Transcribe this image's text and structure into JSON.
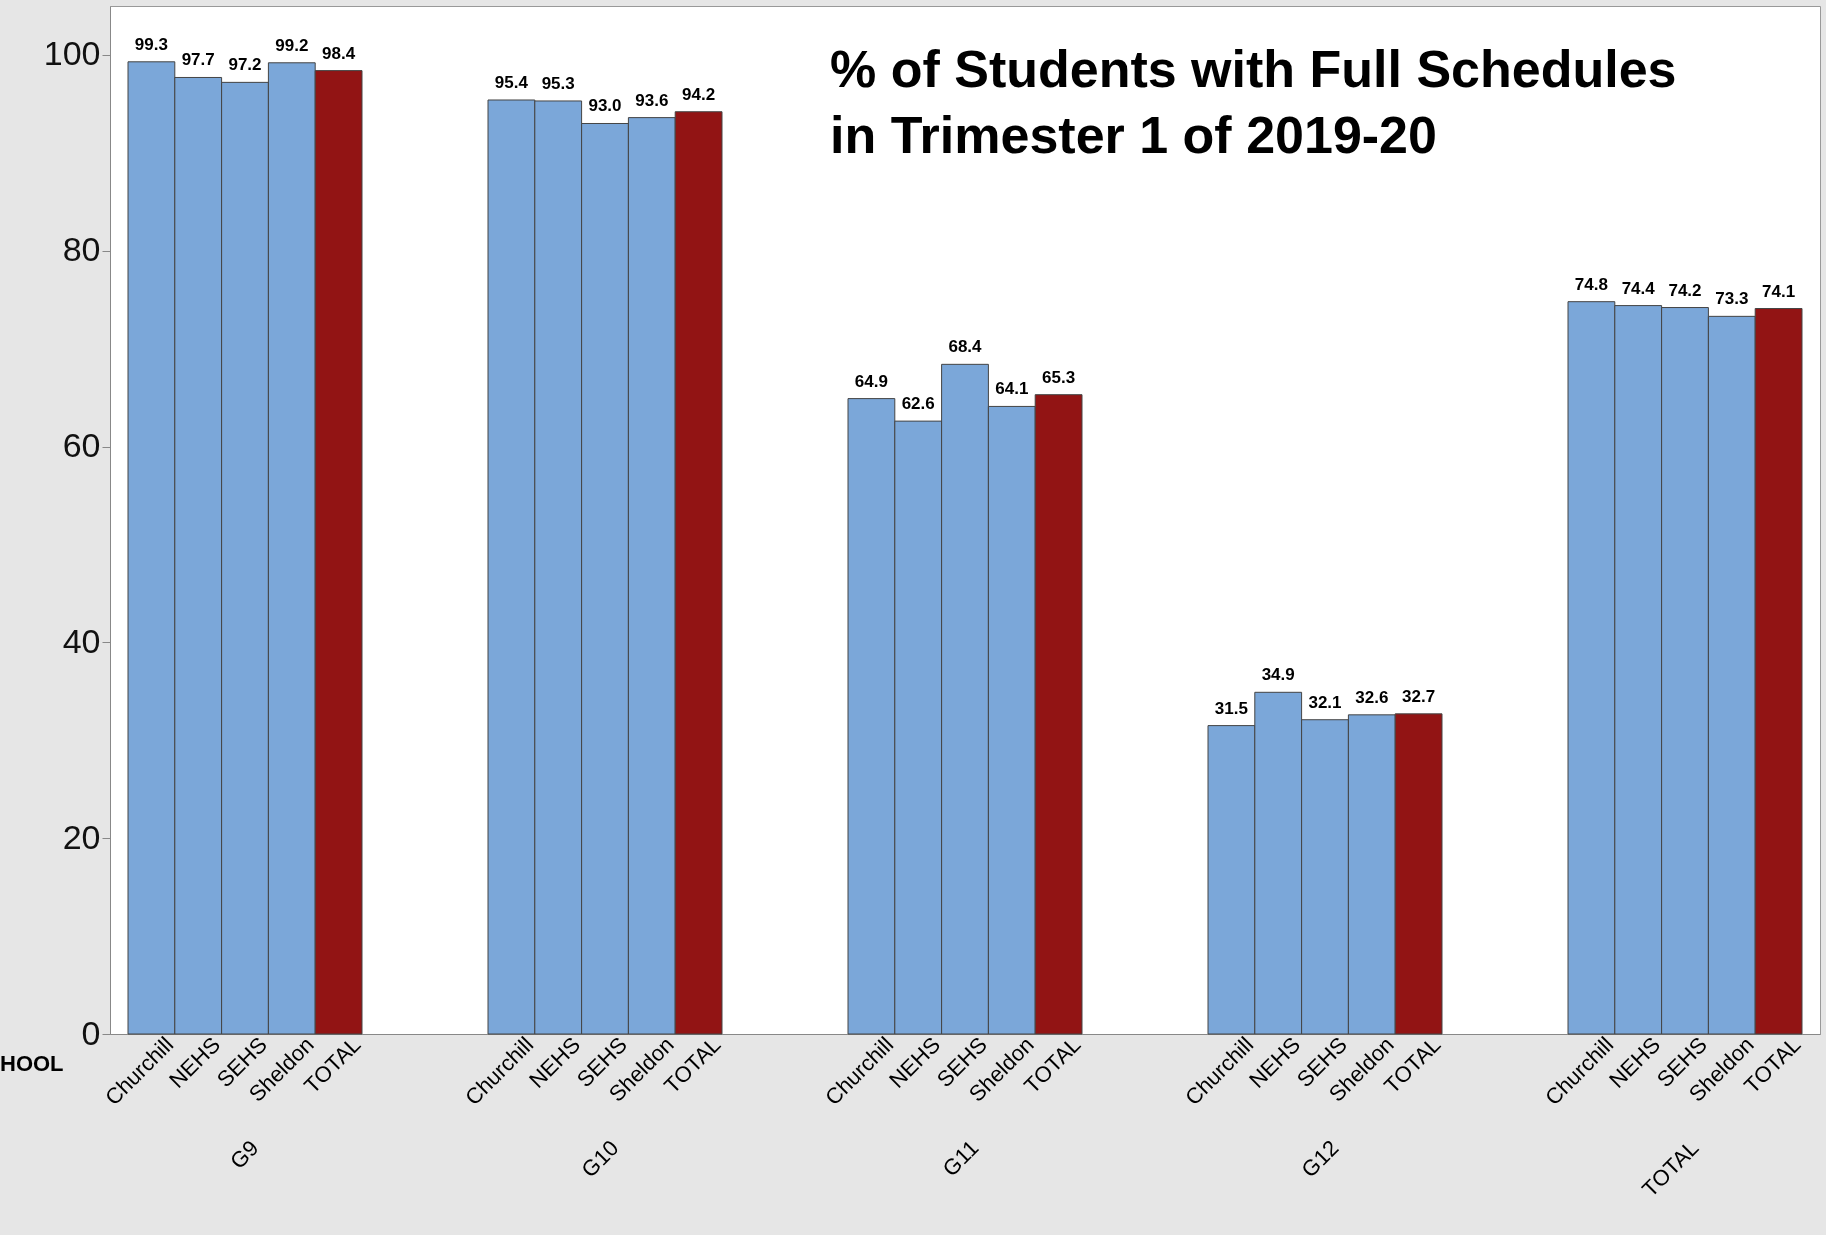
{
  "chart_data": {
    "type": "bar",
    "title": "% of Students with Full Schedules in Trimester 1 of 2019-20",
    "categories": [
      "G9",
      "G10",
      "G11",
      "G12",
      "TOTAL"
    ],
    "series": [
      {
        "name": "Churchill",
        "color": "#7ba7d9",
        "values": [
          99.3,
          95.4,
          64.9,
          31.5,
          74.8
        ]
      },
      {
        "name": "NEHS",
        "color": "#7ba7d9",
        "values": [
          97.7,
          95.3,
          62.6,
          34.9,
          74.4
        ]
      },
      {
        "name": "SEHS",
        "color": "#7ba7d9",
        "values": [
          97.2,
          93.0,
          68.4,
          32.1,
          74.2
        ],
        "value_labels": [
          "97.2",
          "93.0",
          "68.4",
          "32.1",
          "74.2"
        ]
      },
      {
        "name": "Sheldon",
        "color": "#7ba7d9",
        "values": [
          99.2,
          93.6,
          64.1,
          32.6,
          73.3
        ]
      },
      {
        "name": "TOTAL",
        "color": "#921414",
        "values": [
          98.4,
          94.2,
          65.3,
          32.7,
          74.1
        ]
      }
    ],
    "ylim": [
      0,
      105
    ],
    "yticks": [
      0,
      20,
      40,
      60,
      80,
      100
    ],
    "data_labels": true,
    "annotations": [
      "HOOL"
    ]
  }
}
